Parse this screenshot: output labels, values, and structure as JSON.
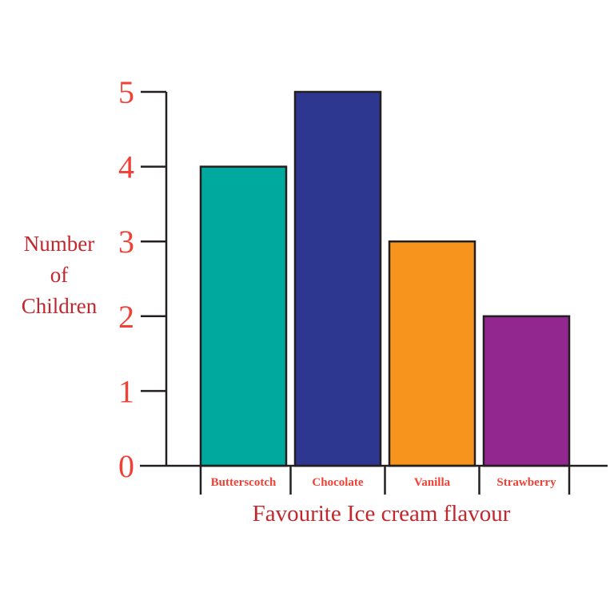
{
  "chart_data": {
    "type": "bar",
    "categories": [
      "Butterscotch",
      "Chocolate",
      "Vanilla",
      "Strawberry"
    ],
    "values": [
      4,
      5,
      3,
      2
    ],
    "bar_colors": [
      "#00a99d",
      "#2e3790",
      "#f7941d",
      "#92278f"
    ],
    "xlabel": "Favourite Ice cream flavour",
    "ylabel_lines": [
      "Number",
      "of",
      "Children"
    ],
    "ylim": [
      0,
      5
    ],
    "yticks": [
      0,
      1,
      2,
      3,
      4,
      5
    ],
    "grid": false,
    "colors": {
      "ytick": "#ef4136",
      "ylabel": "#c1272d",
      "xtick": "#ef4136",
      "xlabel": "#c1272d",
      "axis": "#231f20"
    }
  }
}
